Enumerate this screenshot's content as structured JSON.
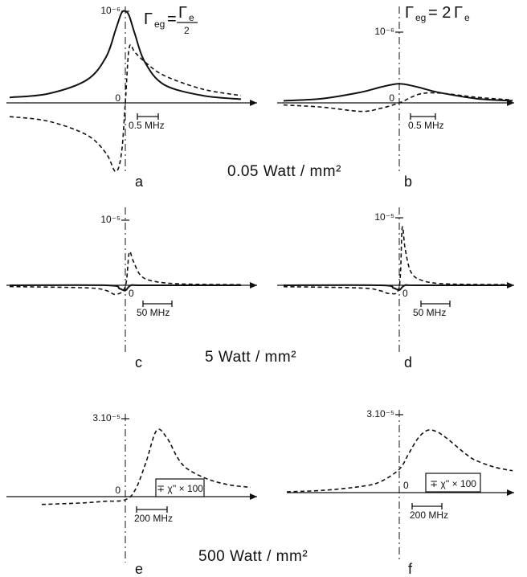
{
  "chart_data": [
    {
      "panel": "a",
      "type": "line",
      "tick_label": "10⁻⁶",
      "scale_label": "0.5 MHz",
      "annotation": {
        "main": "Γ",
        "sub": "eg",
        "eq": "=",
        "num": "Γ",
        "numsub": "e",
        "den": "2"
      },
      "series": [
        {
          "style": "solid",
          "x": [
            -6,
            -4,
            -2,
            -1,
            -0.5,
            -0.2,
            0,
            0.2,
            0.5,
            1,
            2,
            4,
            6
          ],
          "values": [
            0.06,
            0.1,
            0.25,
            0.5,
            0.8,
            0.98,
            1.0,
            0.95,
            0.75,
            0.45,
            0.2,
            0.08,
            0.04
          ]
        },
        {
          "style": "dashed",
          "x": [
            -6,
            -4,
            -2,
            -1,
            -0.5,
            -0.2,
            0,
            0.2,
            0.5,
            1,
            2,
            4,
            6
          ],
          "values": [
            -0.15,
            -0.2,
            -0.35,
            -0.55,
            -0.75,
            -0.55,
            0.0,
            0.6,
            0.55,
            0.45,
            0.3,
            0.15,
            0.08
          ]
        }
      ]
    },
    {
      "panel": "b",
      "type": "line",
      "tick_label": "10⁻⁶",
      "scale_label": "0.5 MHz",
      "annotation": {
        "main": "Γ",
        "sub": "eg",
        "eq": "= 2",
        "num": "Γ",
        "numsub": "e"
      },
      "series": [
        {
          "style": "solid",
          "x": [
            -6,
            -4,
            -2,
            -1,
            0,
            1,
            2,
            4,
            6
          ],
          "values": [
            0.03,
            0.06,
            0.15,
            0.22,
            0.27,
            0.22,
            0.15,
            0.06,
            0.03
          ]
        },
        {
          "style": "dashed",
          "x": [
            -6,
            -4,
            -2,
            -1,
            0,
            1,
            2,
            4,
            6
          ],
          "values": [
            -0.03,
            -0.06,
            -0.12,
            -0.08,
            0.0,
            0.12,
            0.14,
            0.08,
            0.04
          ]
        }
      ]
    },
    {
      "panel": "c",
      "type": "line",
      "tick_label": "10⁻⁵",
      "scale_label": "50 MHz",
      "series": [
        {
          "style": "solid",
          "x": [
            -6,
            -1,
            -0.3,
            0,
            0.3,
            1,
            6
          ],
          "values": [
            0,
            0,
            -0.05,
            -0.08,
            0.0,
            0,
            0
          ]
        },
        {
          "style": "dashed",
          "x": [
            -6,
            -2,
            -1,
            -0.5,
            0,
            0.2,
            0.4,
            0.8,
            1.5,
            3,
            6
          ],
          "values": [
            -0.02,
            -0.04,
            -0.08,
            -0.14,
            -0.02,
            0.5,
            0.38,
            0.15,
            0.06,
            0.02,
            0.01
          ]
        }
      ]
    },
    {
      "panel": "d",
      "type": "line",
      "tick_label": "10⁻⁵",
      "scale_label": "50 MHz",
      "series": [
        {
          "style": "solid",
          "x": [
            -6,
            -1,
            -0.3,
            0,
            0.3,
            1,
            6
          ],
          "values": [
            0,
            0,
            -0.04,
            -0.07,
            0.0,
            0,
            0
          ]
        },
        {
          "style": "dashed",
          "x": [
            -6,
            -2,
            -1,
            -0.5,
            0,
            0.15,
            0.3,
            0.6,
            1.2,
            2.5,
            6
          ],
          "values": [
            -0.02,
            -0.04,
            -0.08,
            -0.12,
            -0.02,
            0.85,
            0.55,
            0.2,
            0.07,
            0.02,
            0.01
          ]
        }
      ]
    },
    {
      "panel": "e",
      "type": "line",
      "tick_label": "3.10⁻⁵",
      "scale_label": "200 MHz",
      "box_label": "∓ χ'' × 100",
      "series": [
        {
          "style": "dashed",
          "x": [
            -4,
            -2,
            -1,
            0,
            0.5,
            1,
            1.5,
            2,
            2.5,
            3,
            4,
            5,
            6
          ],
          "values": [
            -0.1,
            -0.08,
            -0.06,
            -0.04,
            0.1,
            0.45,
            0.85,
            0.75,
            0.5,
            0.35,
            0.22,
            0.15,
            0.12
          ]
        }
      ]
    },
    {
      "panel": "f",
      "type": "line",
      "tick_label": "3.10⁻⁵",
      "scale_label": "200 MHz",
      "box_label": "∓ χ'' × 100",
      "series": [
        {
          "style": "dashed",
          "x": [
            -6,
            -4,
            -2,
            -1,
            0,
            0.5,
            1,
            1.5,
            2,
            2.5,
            3,
            3.5,
            4,
            5,
            6
          ],
          "values": [
            0.01,
            0.03,
            0.08,
            0.14,
            0.3,
            0.5,
            0.7,
            0.8,
            0.78,
            0.7,
            0.6,
            0.5,
            0.42,
            0.33,
            0.28
          ]
        }
      ]
    }
  ],
  "conditions": [
    "0.05 Watt / mm²",
    "5 Watt / mm²",
    "500 Watt / mm²"
  ]
}
